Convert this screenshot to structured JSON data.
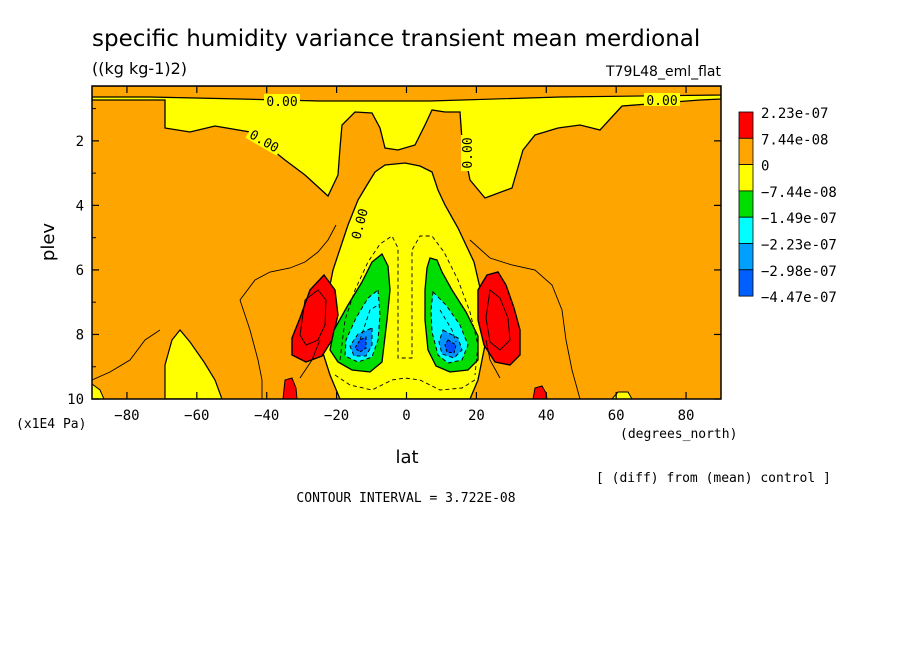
{
  "chart_data": {
    "type": "heatmap",
    "title": "specific humidity variance transient mean merdional",
    "units": "((kg kg-1)2)",
    "dataset": "T79L48_eml_flat",
    "xlabel": "lat",
    "xunits": "(degrees_north)",
    "ylabel": "plev",
    "yunits": "(x1E4 Pa)",
    "xlim": [
      -90,
      90
    ],
    "ylim": [
      0.3,
      10
    ],
    "y_inverted": true,
    "x_ticks": [
      -80,
      -60,
      -40,
      -20,
      0,
      20,
      40,
      60,
      80
    ],
    "y_ticks": [
      2,
      4,
      6,
      8,
      10
    ],
    "comparison_note": "[ (diff) from (mean) control ]",
    "contour_interval": "CONTOUR INTERVAL = 3.722E-08",
    "contour_labels": [
      "0.00",
      "0.00",
      "0.00",
      "0.00",
      "0.00"
    ],
    "levels": [
      {
        "label": "2.23e-07",
        "color": "#ff0000"
      },
      {
        "label": "7.44e-08",
        "color": "#ffa500"
      },
      {
        "label": "0",
        "color": "#ffff00"
      },
      {
        "label": "-7.44e-08",
        "color": "#00dd00"
      },
      {
        "label": "-1.49e-07",
        "color": "#00ffff"
      },
      {
        "label": "-2.23e-07",
        "color": "#00a0ff"
      },
      {
        "label": "-2.98e-07",
        "color": "#0060ff"
      },
      {
        "label": "-4.47e-07",
        "color": null
      }
    ],
    "fill_colors": {
      "positive_high": "#ff0000",
      "positive": "#ffa500",
      "near_zero": "#ffff00",
      "negative": "#00dd00",
      "negative_more": "#00ffff",
      "negative_most": "#0096ff",
      "negative_extreme": "#0050ff"
    },
    "features": [
      {
        "description": "upper positive band",
        "lat_range": [
          -90,
          90
        ],
        "plev_range": [
          0.3,
          0.5
        ],
        "sign": "positive"
      },
      {
        "description": "red maximum SH",
        "lat_center": -27,
        "plev_center": 7.5,
        "sign": "positive_high"
      },
      {
        "description": "red maximum NH",
        "lat_center": 27,
        "plev_center": 7.5,
        "sign": "positive_high"
      },
      {
        "description": "blue minimum SH",
        "lat_center": -14,
        "plev_center": 8.4,
        "sign": "negative_extreme"
      },
      {
        "description": "blue minimum NH",
        "lat_center": 13,
        "plev_center": 8.4,
        "sign": "negative_extreme"
      }
    ]
  }
}
